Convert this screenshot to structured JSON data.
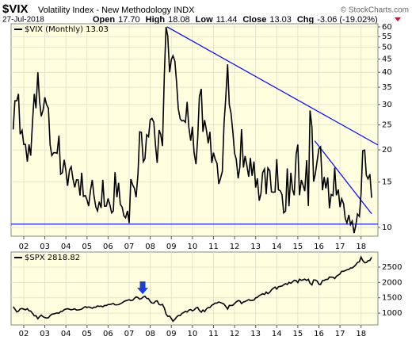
{
  "chart_data": [
    {
      "type": "line",
      "title": "$VIX",
      "subtitle": "Volatility Index - New Methodology INDX",
      "date": "27-Jul-2018",
      "ohlc": [
        {
          "label": "Open",
          "value": "17.70"
        },
        {
          "label": "High",
          "value": "18.08"
        },
        {
          "label": "Low",
          "value": "11.44"
        },
        {
          "label": "Close",
          "value": "13.03"
        },
        {
          "label": "Chg",
          "value": "-3.06 (-19.02%)"
        }
      ],
      "credit": "© StockCharts.com",
      "background": "#ffffe0",
      "grid": true,
      "ylog": true,
      "xlim": [
        2001.4,
        2018.8
      ],
      "ylim": [
        9.25,
        61.7
      ],
      "xticks": [
        {
          "value": 2002,
          "label": "02"
        },
        {
          "value": 2003,
          "label": "03"
        },
        {
          "value": 2004,
          "label": "04"
        },
        {
          "value": 2005,
          "label": "05"
        },
        {
          "value": 2006,
          "label": "06"
        },
        {
          "value": 2007,
          "label": "07"
        },
        {
          "value": 2008,
          "label": "08"
        },
        {
          "value": 2009,
          "label": "09"
        },
        {
          "value": 2010,
          "label": "10"
        },
        {
          "value": 2011,
          "label": "11"
        },
        {
          "value": 2012,
          "label": "12"
        },
        {
          "value": 2013,
          "label": "13"
        },
        {
          "value": 2014,
          "label": "14"
        },
        {
          "value": 2015,
          "label": "15"
        },
        {
          "value": 2016,
          "label": "16"
        },
        {
          "value": 2017,
          "label": "17"
        },
        {
          "value": 2018,
          "label": "18"
        }
      ],
      "yticks": [
        10,
        15,
        20,
        25,
        30,
        35,
        40,
        45,
        50,
        55,
        60
      ],
      "x": [
        2001.5,
        2001.58,
        2001.67,
        2001.75,
        2001.83,
        2001.92,
        2002,
        2002.08,
        2002.17,
        2002.25,
        2002.33,
        2002.42,
        2002.5,
        2002.58,
        2002.67,
        2002.75,
        2002.83,
        2002.92,
        2003,
        2003.08,
        2003.17,
        2003.25,
        2003.33,
        2003.42,
        2003.5,
        2003.58,
        2003.67,
        2003.75,
        2003.83,
        2003.92,
        2004,
        2004.08,
        2004.17,
        2004.25,
        2004.33,
        2004.42,
        2004.5,
        2004.58,
        2004.67,
        2004.75,
        2004.83,
        2004.92,
        2005,
        2005.08,
        2005.17,
        2005.25,
        2005.33,
        2005.42,
        2005.5,
        2005.58,
        2005.67,
        2005.75,
        2005.83,
        2005.92,
        2006,
        2006.08,
        2006.17,
        2006.25,
        2006.33,
        2006.42,
        2006.5,
        2006.58,
        2006.67,
        2006.75,
        2006.83,
        2006.92,
        2007,
        2007.08,
        2007.17,
        2007.25,
        2007.33,
        2007.42,
        2007.5,
        2007.58,
        2007.67,
        2007.75,
        2007.83,
        2007.92,
        2008,
        2008.08,
        2008.17,
        2008.25,
        2008.33,
        2008.42,
        2008.5,
        2008.58,
        2008.67,
        2008.75,
        2008.83,
        2008.92,
        2009,
        2009.08,
        2009.17,
        2009.25,
        2009.33,
        2009.42,
        2009.5,
        2009.58,
        2009.67,
        2009.75,
        2009.83,
        2009.92,
        2010,
        2010.08,
        2010.17,
        2010.25,
        2010.33,
        2010.42,
        2010.5,
        2010.58,
        2010.67,
        2010.75,
        2010.83,
        2010.92,
        2011,
        2011.08,
        2011.17,
        2011.25,
        2011.33,
        2011.42,
        2011.5,
        2011.58,
        2011.67,
        2011.75,
        2011.83,
        2011.92,
        2012,
        2012.08,
        2012.17,
        2012.25,
        2012.33,
        2012.42,
        2012.5,
        2012.58,
        2012.67,
        2012.75,
        2012.83,
        2012.92,
        2013,
        2013.08,
        2013.17,
        2013.25,
        2013.33,
        2013.42,
        2013.5,
        2013.58,
        2013.67,
        2013.75,
        2013.83,
        2013.92,
        2014,
        2014.08,
        2014.17,
        2014.25,
        2014.33,
        2014.42,
        2014.5,
        2014.58,
        2014.67,
        2014.75,
        2014.83,
        2014.92,
        2015,
        2015.08,
        2015.17,
        2015.25,
        2015.33,
        2015.42,
        2015.5,
        2015.58,
        2015.67,
        2015.75,
        2015.83,
        2015.92,
        2016,
        2016.08,
        2016.17,
        2016.25,
        2016.33,
        2016.42,
        2016.5,
        2016.58,
        2016.67,
        2016.75,
        2016.83,
        2016.92,
        2017,
        2017.08,
        2017.17,
        2017.25,
        2017.33,
        2017.42,
        2017.5,
        2017.58,
        2017.67,
        2017.75,
        2017.83,
        2017.92,
        2018,
        2018.08,
        2018.17,
        2018.25,
        2018.33,
        2018.42,
        2018.5
      ],
      "series": [
        {
          "name": "$VIX (Monthly) 13.03",
          "color": "#000000",
          "values": [
            24,
            31,
            31,
            33,
            23,
            23.8,
            21,
            21,
            18,
            21,
            19,
            26,
            33,
            29,
            40,
            31,
            27,
            28.6,
            32,
            30,
            29,
            21,
            19,
            19.5,
            19.5,
            19.4,
            22.7,
            16.1,
            16.3,
            18.3,
            16.6,
            14.5,
            16.7,
            17.2,
            15.5,
            14.3,
            15.3,
            15.3,
            13.3,
            16.3,
            13.2,
            13.3,
            12.8,
            12.1,
            14,
            15.3,
            13.3,
            12,
            11.6,
            12.6,
            11.9,
            15.3,
            12.1,
            12.1,
            12.95,
            12.3,
            11.4,
            11.6,
            16.4,
            13.1,
            14.9,
            12.3,
            11.98,
            11.1,
            10.9,
            11.6,
            10.4,
            15.4,
            14.6,
            14.2,
            13.1,
            16.2,
            23.5,
            23.4,
            18,
            18.5,
            22.9,
            22.5,
            26.2,
            26.5,
            25.6,
            20.8,
            17.8,
            23.9,
            22.9,
            20.7,
            39.4,
            59.9,
            55.3,
            40,
            44.8,
            46.4,
            44.1,
            36.5,
            28.9,
            26.4,
            25.9,
            26,
            25.6,
            30.7,
            24.5,
            21.7,
            24.6,
            19.5,
            17.6,
            22.1,
            32.1,
            34.5,
            23.5,
            26.1,
            23.7,
            21.2,
            23.5,
            17.8,
            19.5,
            18.4,
            17.7,
            14.75,
            15.45,
            16.5,
            25.25,
            31.6,
            42.96,
            29.96,
            27.8,
            23.4,
            19.4,
            18.4,
            15.5,
            17.15,
            24.06,
            17.08,
            18.93,
            17.47,
            15.73,
            18.6,
            15.87,
            18.02,
            14.28,
            15.51,
            12.7,
            13.52,
            16.3,
            16.86,
            13.45,
            17.01,
            16.6,
            13.75,
            13.7,
            13.72,
            18.41,
            14,
            13.88,
            13.41,
            11.4,
            11.57,
            16.95,
            12.09,
            16.31,
            14.03,
            13.33,
            19.2,
            20.97,
            13.34,
            15.29,
            14.55,
            13.84,
            18.23,
            12.12,
            28.43,
            24.5,
            15.07,
            16.13,
            18.21,
            20.2,
            20.55,
            13.95,
            15.7,
            14.19,
            15.63,
            11.87,
            13.42,
            13.29,
            17.06,
            13.33,
            14.04,
            11.99,
            12.92,
            12.37,
            10.82,
            10.41,
            11.18,
            10.26,
            10.59,
            9.51,
            10.18,
            11.28,
            11.04,
            13.54,
            19.85,
            19.97,
            15.93,
            15.43,
            16.09,
            13.03
          ]
        }
      ],
      "trendlines": [
        {
          "color": "#0000ff",
          "x": [
            2008.8,
            2018.8
          ],
          "y": [
            60,
            20.9
          ]
        },
        {
          "color": "#0000ff",
          "x": [
            2015.8,
            2018.5
          ],
          "y": [
            21.7,
            11.3
          ]
        },
        {
          "color": "#0000ff",
          "x": [
            2001.4,
            2018.8
          ],
          "y": [
            10.3,
            10.3
          ]
        }
      ]
    },
    {
      "type": "line",
      "background": "#ffffe0",
      "grid": true,
      "ylog": false,
      "xlim": [
        2001.4,
        2018.8
      ],
      "ylim": [
        615,
        2990
      ],
      "xticks": [
        {
          "value": 2002,
          "label": "02"
        },
        {
          "value": 2003,
          "label": "03"
        },
        {
          "value": 2004,
          "label": "04"
        },
        {
          "value": 2005,
          "label": "05"
        },
        {
          "value": 2006,
          "label": "06"
        },
        {
          "value": 2007,
          "label": "07"
        },
        {
          "value": 2008,
          "label": "08"
        },
        {
          "value": 2009,
          "label": "09"
        },
        {
          "value": 2010,
          "label": "10"
        },
        {
          "value": 2011,
          "label": "11"
        },
        {
          "value": 2012,
          "label": "12"
        },
        {
          "value": 2013,
          "label": "13"
        },
        {
          "value": 2014,
          "label": "14"
        },
        {
          "value": 2015,
          "label": "15"
        },
        {
          "value": 2016,
          "label": "16"
        },
        {
          "value": 2017,
          "label": "17"
        },
        {
          "value": 2018,
          "label": "18"
        }
      ],
      "yticks": [
        1000,
        1500,
        2000,
        2500
      ],
      "x": [
        2001.5,
        2001.58,
        2001.67,
        2001.75,
        2001.83,
        2001.92,
        2002,
        2002.08,
        2002.17,
        2002.25,
        2002.33,
        2002.42,
        2002.5,
        2002.58,
        2002.67,
        2002.75,
        2002.83,
        2002.92,
        2003,
        2003.08,
        2003.17,
        2003.25,
        2003.33,
        2003.42,
        2003.5,
        2003.58,
        2003.67,
        2003.75,
        2003.83,
        2003.92,
        2004,
        2004.08,
        2004.17,
        2004.25,
        2004.33,
        2004.42,
        2004.5,
        2004.58,
        2004.67,
        2004.75,
        2004.83,
        2004.92,
        2005,
        2005.08,
        2005.17,
        2005.25,
        2005.33,
        2005.42,
        2005.5,
        2005.58,
        2005.67,
        2005.75,
        2005.83,
        2005.92,
        2006,
        2006.08,
        2006.17,
        2006.25,
        2006.33,
        2006.42,
        2006.5,
        2006.58,
        2006.67,
        2006.75,
        2006.83,
        2006.92,
        2007,
        2007.08,
        2007.17,
        2007.25,
        2007.33,
        2007.42,
        2007.5,
        2007.58,
        2007.67,
        2007.75,
        2007.83,
        2007.92,
        2008,
        2008.08,
        2008.17,
        2008.25,
        2008.33,
        2008.42,
        2008.5,
        2008.58,
        2008.67,
        2008.75,
        2008.83,
        2008.92,
        2009,
        2009.08,
        2009.17,
        2009.25,
        2009.33,
        2009.42,
        2009.5,
        2009.58,
        2009.67,
        2009.75,
        2009.83,
        2009.92,
        2010,
        2010.08,
        2010.17,
        2010.25,
        2010.33,
        2010.42,
        2010.5,
        2010.58,
        2010.67,
        2010.75,
        2010.83,
        2010.92,
        2011,
        2011.08,
        2011.17,
        2011.25,
        2011.33,
        2011.42,
        2011.5,
        2011.58,
        2011.67,
        2011.75,
        2011.83,
        2011.92,
        2012,
        2012.08,
        2012.17,
        2012.25,
        2012.33,
        2012.42,
        2012.5,
        2012.58,
        2012.67,
        2012.75,
        2012.83,
        2012.92,
        2013,
        2013.08,
        2013.17,
        2013.25,
        2013.33,
        2013.42,
        2013.5,
        2013.58,
        2013.67,
        2013.75,
        2013.83,
        2013.92,
        2014,
        2014.08,
        2014.17,
        2014.25,
        2014.33,
        2014.42,
        2014.5,
        2014.58,
        2014.67,
        2014.75,
        2014.83,
        2014.92,
        2015,
        2015.08,
        2015.17,
        2015.25,
        2015.33,
        2015.42,
        2015.5,
        2015.58,
        2015.67,
        2015.75,
        2015.83,
        2015.92,
        2016,
        2016.08,
        2016.17,
        2016.25,
        2016.33,
        2016.42,
        2016.5,
        2016.58,
        2016.67,
        2016.75,
        2016.83,
        2016.92,
        2017,
        2017.08,
        2017.17,
        2017.25,
        2017.33,
        2017.42,
        2017.5,
        2017.58,
        2017.67,
        2017.75,
        2017.83,
        2017.92,
        2018,
        2018.08,
        2018.17,
        2018.25,
        2018.33,
        2018.42,
        2018.5
      ],
      "series": [
        {
          "name": "$SPX 2818.82",
          "color": "#000000",
          "values": [
            1211,
            1134,
            1041,
            1060,
            1139,
            1148,
            1130,
            1107,
            1147,
            1076,
            1067,
            990,
            912,
            916,
            815,
            886,
            936,
            880,
            856,
            841,
            848,
            917,
            964,
            975,
            990,
            1008,
            996,
            1051,
            1058,
            1112,
            1131,
            1145,
            1126,
            1107,
            1121,
            1141,
            1102,
            1104,
            1115,
            1130,
            1174,
            1212,
            1181,
            1204,
            1181,
            1157,
            1191,
            1191,
            1234,
            1220,
            1229,
            1207,
            1249,
            1248,
            1280,
            1281,
            1295,
            1311,
            1270,
            1270,
            1277,
            1304,
            1336,
            1378,
            1401,
            1418,
            1438,
            1407,
            1421,
            1482,
            1531,
            1503,
            1455,
            1474,
            1527,
            1549,
            1481,
            1468,
            1379,
            1331,
            1323,
            1386,
            1400,
            1280,
            1267,
            1283,
            1166,
            969,
            896,
            903,
            826,
            735,
            798,
            873,
            919,
            919,
            987,
            1021,
            1057,
            1036,
            1096,
            1115,
            1074,
            1104,
            1169,
            1187,
            1089,
            1031,
            1102,
            1049,
            1141,
            1183,
            1181,
            1258,
            1286,
            1327,
            1326,
            1364,
            1345,
            1321,
            1292,
            1219,
            1131,
            1253,
            1247,
            1258,
            1312,
            1366,
            1408,
            1398,
            1310,
            1362,
            1379,
            1407,
            1441,
            1412,
            1416,
            1426,
            1498,
            1515,
            1569,
            1598,
            1631,
            1606,
            1686,
            1633,
            1682,
            1757,
            1806,
            1848,
            1783,
            1859,
            1872,
            1884,
            1924,
            1960,
            1931,
            2003,
            1972,
            2018,
            2068,
            2059,
            1995,
            2105,
            2068,
            2086,
            2107,
            2063,
            2104,
            1972,
            1920,
            2079,
            2080,
            2044,
            1940,
            1932,
            2060,
            2065,
            2097,
            2099,
            2174,
            2171,
            2168,
            2126,
            2199,
            2239,
            2279,
            2364,
            2363,
            2384,
            2412,
            2423,
            2470,
            2472,
            2519,
            2575,
            2648,
            2674,
            2824,
            2714,
            2641,
            2648,
            2705,
            2718,
            2818.82
          ]
        }
      ],
      "markers": [
        {
          "x": 2007.64,
          "y": 1620,
          "color": "#1a3fd6"
        }
      ]
    }
  ]
}
